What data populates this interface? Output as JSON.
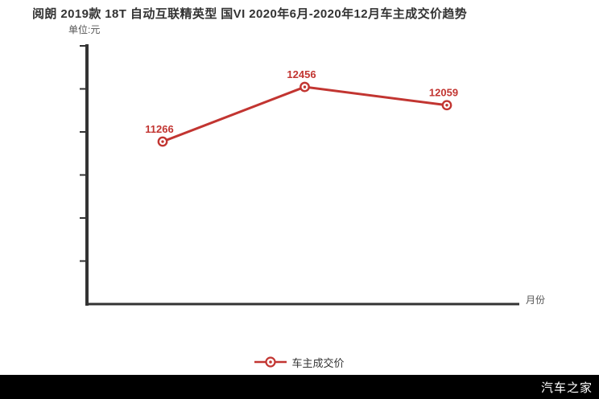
{
  "title": "阅朗 2019款 18T 自动互联精英型 国VI 2020年6月-2020年12月车主成交价趋势",
  "axis_unit_label": "单位:元",
  "x_axis_label": "月份",
  "legend": {
    "label": "车主成交价"
  },
  "watermark": "汽车之家",
  "colors": {
    "line": "#c23531",
    "axis": "#333333",
    "point_fill": "#ffffff"
  },
  "chart_data": {
    "type": "line",
    "title": "阅朗 2019款 18T 自动互联精英型 国VI 2020年6月-2020年12月车主成交价趋势",
    "categories": [
      "",
      "",
      ""
    ],
    "series": [
      {
        "name": "车主成交价",
        "values": [
          11266,
          12456,
          12059
        ]
      }
    ],
    "point_labels": [
      "11266",
      "12456",
      "12059"
    ],
    "xlabel": "月份",
    "ylabel": "单位:元",
    "ylim": [
      7730,
      13350
    ],
    "grid": false,
    "legend_position": "bottom"
  }
}
